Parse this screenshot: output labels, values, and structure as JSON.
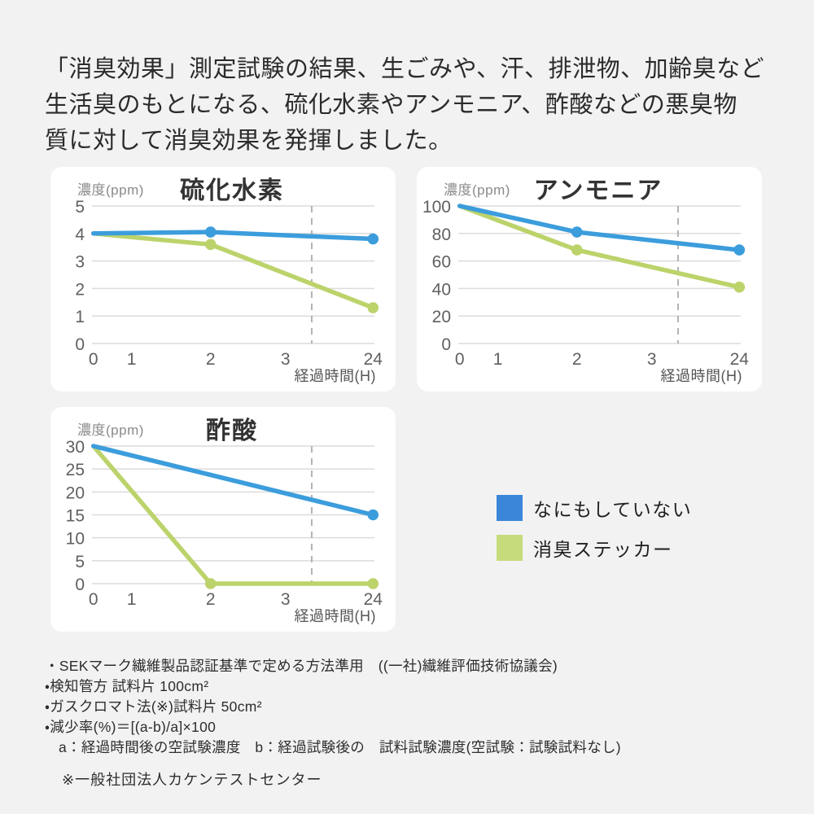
{
  "header": {
    "lines": [
      "「消臭効果」測定試験の結果、生ごみや、汗、排泄物、加齢臭など",
      "生活臭のもとになる、硫化水素やアンモニア、酢酸などの悪臭物",
      "質に対して消臭効果を発揮しました。"
    ]
  },
  "colors": {
    "background": "#f2f2f3",
    "card": "#ffffff",
    "line_blue": "#3c9ddc",
    "line_green": "#bcd36b",
    "legend_blue": "#3c86d9",
    "legend_green": "#c6db7c",
    "grid": "#dcdcdc",
    "dashed": "#b3b3b3",
    "tick_text": "#606060",
    "unit_text": "#8a8a8a",
    "title_text": "#333333"
  },
  "legend": {
    "items": [
      {
        "label": "なにもしていない",
        "color": "#3c86d9"
      },
      {
        "label": "消臭ステッカー",
        "color": "#c6db7c"
      }
    ]
  },
  "chart_data": [
    {
      "type": "line",
      "title": "硫化水素",
      "y_axis_label": "濃度(ppm)",
      "x_axis_label": "経過時間(H)",
      "x_ticks": [
        "0",
        "1",
        "2",
        "3",
        "24"
      ],
      "x_tick_positions": [
        0.005,
        0.14,
        0.42,
        0.685,
        0.995
      ],
      "y_ticks": [
        5,
        4,
        3,
        2,
        1,
        0
      ],
      "ylim": [
        0,
        5
      ],
      "grid": true,
      "dashed_marker_x": 0.778,
      "series": [
        {
          "name": "なにもしていない",
          "color": "blue",
          "x": [
            "0",
            "2",
            "24"
          ],
          "y": [
            4.0,
            4.05,
            3.8
          ]
        },
        {
          "name": "消臭ステッカー",
          "color": "green",
          "x": [
            "0",
            "2",
            "24"
          ],
          "y": [
            4.0,
            3.6,
            1.3
          ]
        }
      ]
    },
    {
      "type": "line",
      "title": "アンモニア",
      "y_axis_label": "濃度(ppm)",
      "x_axis_label": "経過時間(H)",
      "x_ticks": [
        "0",
        "1",
        "2",
        "3",
        "24"
      ],
      "x_tick_positions": [
        0.005,
        0.14,
        0.42,
        0.685,
        0.995
      ],
      "y_ticks": [
        100,
        80,
        60,
        40,
        20,
        0
      ],
      "ylim": [
        0,
        100
      ],
      "grid": true,
      "dashed_marker_x": 0.778,
      "series": [
        {
          "name": "なにもしていない",
          "color": "blue",
          "x": [
            "0",
            "2",
            "24"
          ],
          "y": [
            100,
            81,
            68
          ]
        },
        {
          "name": "消臭ステッカー",
          "color": "green",
          "x": [
            "0",
            "2",
            "24"
          ],
          "y": [
            100,
            68,
            41
          ]
        }
      ]
    },
    {
      "type": "line",
      "title": "酢酸",
      "y_axis_label": "濃度(ppm)",
      "x_axis_label": "経過時間(H)",
      "x_ticks": [
        "0",
        "1",
        "2",
        "3",
        "24"
      ],
      "x_tick_positions": [
        0.005,
        0.14,
        0.42,
        0.685,
        0.995
      ],
      "y_ticks": [
        30,
        25,
        20,
        15,
        10,
        5,
        0
      ],
      "ylim": [
        0,
        30
      ],
      "grid": true,
      "dashed_marker_x": 0.778,
      "series": [
        {
          "name": "なにもしていない",
          "color": "blue",
          "x": [
            "0",
            "24"
          ],
          "y": [
            30,
            15
          ]
        },
        {
          "name": "消臭ステッカー",
          "color": "green",
          "x": [
            "0",
            "2",
            "24"
          ],
          "y": [
            30,
            0,
            0
          ]
        }
      ]
    }
  ],
  "footnotes": [
    "・SEKマーク繊維製品認証基準で定める方法準用　((一社)繊維評価技術協議会)",
    "・検知管方 試料片 100cm²",
    "・ガスクロマト法(※)試料片 50cm²",
    "・減少率(%)＝[(a-b)/a]×100",
    "a：経過時間後の空試験濃度　b：経過試験後の　試料試験濃度(空試験：試験試料なし)"
  ],
  "source_note": "※一般社団法人カケンテストセンター"
}
